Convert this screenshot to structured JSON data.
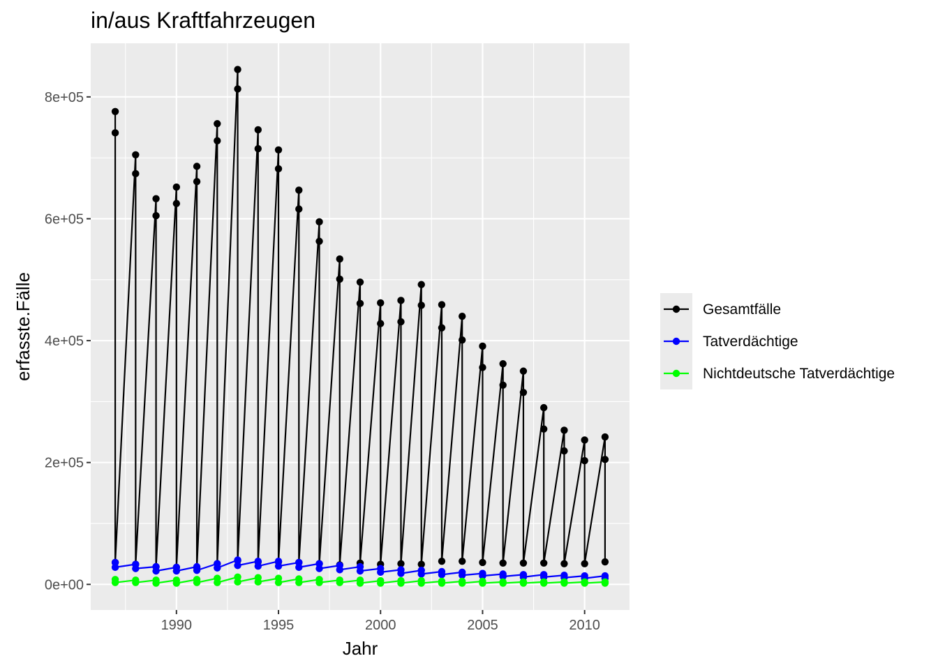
{
  "chart_data": {
    "type": "line",
    "title": "in/aus Kraftfahrzeugen",
    "xlabel": "Jahr",
    "ylabel": "erfasste.Fälle",
    "x_ticks": [
      1990,
      1995,
      2000,
      2005,
      2010
    ],
    "y_ticks": [
      {
        "value": 0,
        "label": "0e+00"
      },
      {
        "value": 200000,
        "label": "2e+05"
      },
      {
        "value": 400000,
        "label": "4e+05"
      },
      {
        "value": 600000,
        "label": "6e+05"
      },
      {
        "value": 800000,
        "label": "8e+05"
      }
    ],
    "xlim": [
      1985.8,
      2012.2
    ],
    "ylim": [
      -42000,
      888000
    ],
    "grid": true,
    "legend_position": "right",
    "years": [
      1987,
      1988,
      1989,
      1990,
      1991,
      1992,
      1993,
      1994,
      1995,
      1996,
      1997,
      1998,
      1999,
      2000,
      2001,
      2002,
      2003,
      2004,
      2005,
      2006,
      2007,
      2008,
      2009,
      2010,
      2011
    ],
    "series": [
      {
        "name": "Gesamtfälle",
        "color": "#000000",
        "values_a": [
          776000,
          705000,
          633000,
          652000,
          686000,
          756000,
          845000,
          746000,
          713000,
          647000,
          595000,
          534000,
          496000,
          462000,
          466000,
          492000,
          459000,
          440000,
          391000,
          362000,
          350000,
          290000,
          253000,
          237000,
          242000
        ],
        "values_b": [
          741000,
          674000,
          605000,
          625000,
          661000,
          728000,
          813000,
          715000,
          682000,
          616000,
          563000,
          501000,
          461000,
          428000,
          431000,
          458000,
          421000,
          401000,
          356000,
          327000,
          315000,
          255000,
          219000,
          203000,
          205000
        ],
        "values_c": [
          36000,
          33000,
          29000,
          28000,
          28000,
          34000,
          39000,
          37000,
          37000,
          36000,
          34000,
          32000,
          35000,
          33000,
          34000,
          33000,
          38000,
          38000,
          36000,
          35000,
          35000,
          35000,
          34000,
          34000,
          37000
        ]
      },
      {
        "name": "Tatverdächtige",
        "color": "#0000ff",
        "values_a": [
          36000,
          33000,
          29000,
          28000,
          29000,
          34000,
          40000,
          38000,
          38000,
          36000,
          34000,
          31000,
          29000,
          26000,
          24000,
          23000,
          21000,
          20000,
          18000,
          17000,
          16000,
          16000,
          15000,
          14000,
          14000
        ],
        "values_b": [
          28000,
          26000,
          22000,
          22000,
          23000,
          27000,
          31000,
          30000,
          30000,
          28000,
          26000,
          24000,
          22000,
          20000,
          18000,
          17000,
          16000,
          15000,
          14000,
          13000,
          12000,
          12000,
          11000,
          10000,
          10000
        ]
      },
      {
        "name": "Nichtdeutsche Tatverdächtige",
        "color": "#00ff00",
        "values_a": [
          8000,
          7000,
          7000,
          7000,
          8000,
          10000,
          12000,
          11000,
          10000,
          9000,
          8000,
          7000,
          7000,
          6000,
          6000,
          6000,
          5000,
          5000,
          5000,
          4000,
          4000,
          4000,
          4000,
          4000,
          4000
        ],
        "values_b": [
          3000,
          3000,
          2000,
          2000,
          3000,
          3000,
          4000,
          4000,
          3000,
          3000,
          3000,
          3000,
          2000,
          2000,
          2000,
          2000,
          2000,
          2000,
          2000,
          2000,
          2000,
          2000,
          2000,
          2000,
          2000
        ]
      }
    ]
  }
}
